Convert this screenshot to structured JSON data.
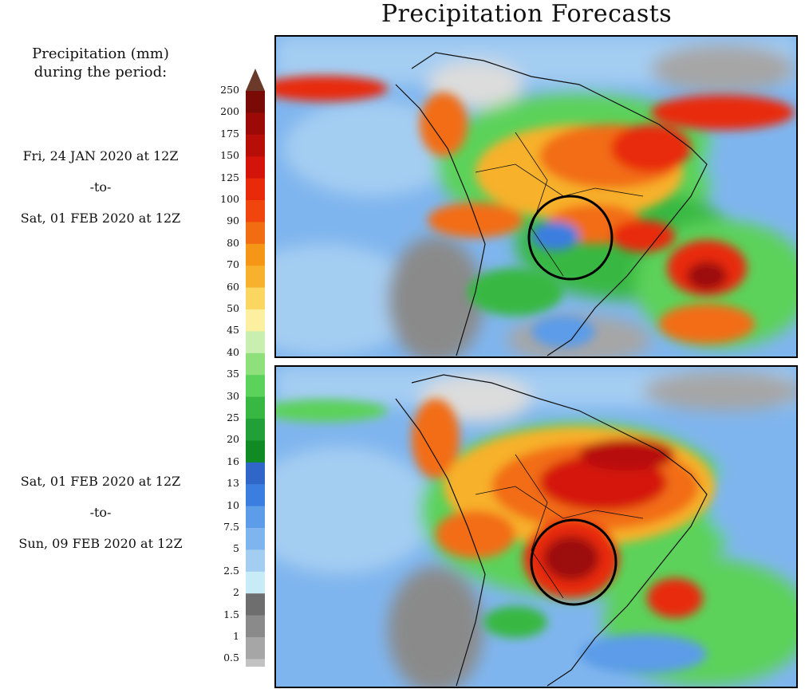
{
  "title": "Precipitation Forecasts",
  "legend": {
    "title_line1": "Precipitation (mm)",
    "title_line2": "during the period:",
    "ticks": [
      "250",
      "200",
      "175",
      "150",
      "125",
      "100",
      "90",
      "80",
      "70",
      "60",
      "50",
      "45",
      "40",
      "35",
      "30",
      "25",
      "20",
      "16",
      "13",
      "10",
      "7.5",
      "5",
      "2.5",
      "2",
      "1.5",
      "1",
      "0.5"
    ],
    "colors": [
      "#7a0a06",
      "#9c0a08",
      "#b80e08",
      "#d4140a",
      "#e8290a",
      "#f0460e",
      "#f26d12",
      "#f59616",
      "#f7b12c",
      "#fbd660",
      "#fcf0a0",
      "#c8efb0",
      "#8ee07a",
      "#5bd25a",
      "#38b842",
      "#20a036",
      "#108a22",
      "#2f66c8",
      "#3a7ee0",
      "#5c9ce8",
      "#7fb5ee",
      "#a4cdf2",
      "#c8ebf8",
      "#6e6e6e",
      "#8a8a8a",
      "#a6a6a6",
      "#c2c2c2",
      "#dcdcdc"
    ]
  },
  "periods": [
    {
      "from": "Fri, 24 JAN 2020 at 12Z",
      "sep": "-to-",
      "to": "Sat, 01 FEB 2020 at 12Z"
    },
    {
      "from": "Sat, 01 FEB 2020 at 12Z",
      "sep": "-to-",
      "to": "Sun, 09 FEB 2020 at 12Z"
    }
  ]
}
